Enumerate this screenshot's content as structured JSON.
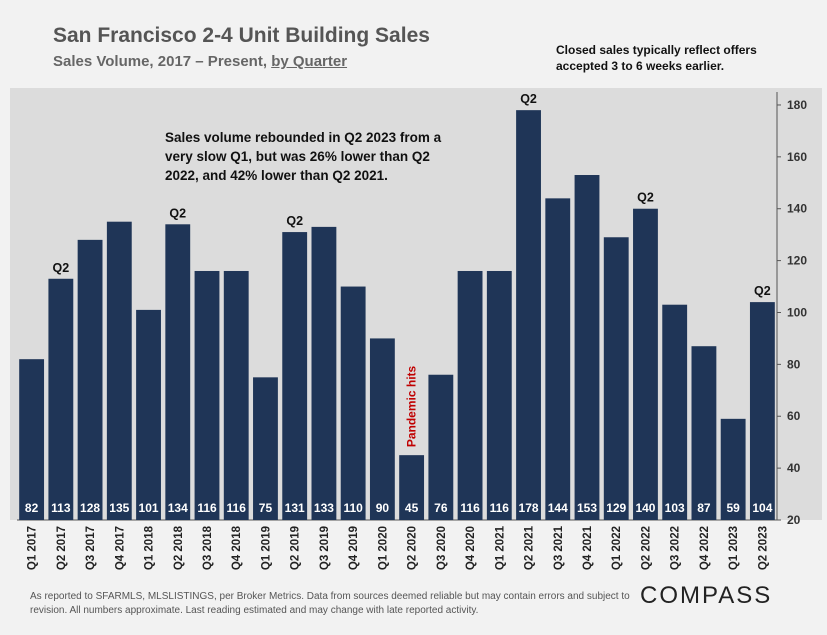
{
  "header": {
    "title": "San Francisco 2-4 Unit Building Sales",
    "subtitle_prefix": "Sales Volume, 2017 – Present,",
    "subtitle_underlined": "by Quarter"
  },
  "note_top": "Closed sales typically reflect offers accepted 3 to 6 weeks earlier.",
  "annotation": "Sales volume rebounded in Q2 2023 from a very slow Q1, but was 26% lower than Q2 2022, and 42% lower than Q2 2021.",
  "footer": "As reported to SFARMLS, MLSLISTINGS, per Broker Metrics. Data from sources deemed reliable but may contain errors and subject to revision. All numbers approximate.  Last reading estimated and may change with late reported activity.",
  "logo": "COMPASS",
  "colors": {
    "bar": "#1f3557",
    "plot_bg": "#dcdcdc",
    "label_color": "#ffffff",
    "pandemic": "#c00000"
  },
  "chart_data": {
    "type": "bar",
    "categories": [
      "Q1 2017",
      "Q2 2017",
      "Q3 2017",
      "Q4 2017",
      "Q1 2018",
      "Q2 2018",
      "Q3 2018",
      "Q4 2018",
      "Q1 2019",
      "Q2 2019",
      "Q3 2019",
      "Q4 2019",
      "Q1 2020",
      "Q2 2020",
      "Q3 2020",
      "Q4 2020",
      "Q1 2021",
      "Q2 2021",
      "Q3 2021",
      "Q4 2021",
      "Q1 2022",
      "Q2 2022",
      "Q3 2022",
      "Q4 2022",
      "Q1 2023",
      "Q2 2023"
    ],
    "values": [
      82,
      113,
      128,
      135,
      101,
      134,
      116,
      116,
      75,
      131,
      133,
      110,
      90,
      45,
      76,
      116,
      116,
      178,
      144,
      153,
      129,
      140,
      103,
      87,
      59,
      104
    ],
    "ylim": [
      20,
      185
    ],
    "yticks": [
      20,
      40,
      60,
      80,
      100,
      120,
      140,
      160,
      180
    ],
    "bar_labels": [
      {
        "index": 1,
        "text": "Q2"
      },
      {
        "index": 5,
        "text": "Q2"
      },
      {
        "index": 9,
        "text": "Q2"
      },
      {
        "index": 17,
        "text": "Q2"
      },
      {
        "index": 21,
        "text": "Q2"
      },
      {
        "index": 25,
        "text": "Q2"
      }
    ],
    "annotations": [
      {
        "index": 13,
        "text": "Pandemic hits"
      }
    ]
  }
}
